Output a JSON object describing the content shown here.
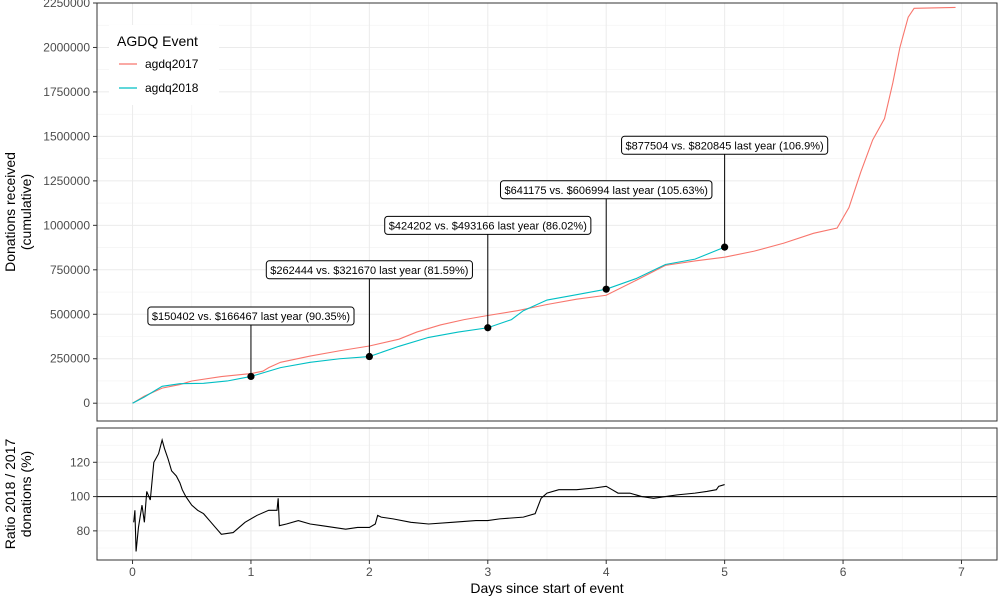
{
  "chart_data": [
    {
      "type": "line",
      "panel": "top",
      "ylabel_lines": [
        "Donations received",
        "(cumulative)"
      ],
      "xlim": [
        -0.3,
        7.3
      ],
      "ylim": [
        -100000,
        2250000
      ],
      "x_ticks": [
        0,
        1,
        2,
        3,
        4,
        5,
        6,
        7
      ],
      "y_ticks": [
        0,
        250000,
        500000,
        750000,
        1000000,
        1250000,
        1500000,
        1750000,
        2000000,
        2250000
      ],
      "grid": true,
      "legend": {
        "title": "AGDQ Event",
        "placement": "top-left",
        "entries": [
          {
            "label": "agdq2017",
            "color": "#F8766D"
          },
          {
            "label": "agdq2018",
            "color": "#00BFC4"
          }
        ]
      },
      "series": [
        {
          "name": "agdq2017",
          "color": "#F8766D",
          "points": [
            [
              0,
              0
            ],
            [
              0.1,
              40000
            ],
            [
              0.25,
              85000
            ],
            [
              0.4,
              105000
            ],
            [
              0.5,
              125000
            ],
            [
              0.75,
              150000
            ],
            [
              1.0,
              166467
            ],
            [
              1.1,
              180000
            ],
            [
              1.15,
              200000
            ],
            [
              1.25,
              230000
            ],
            [
              1.5,
              265000
            ],
            [
              1.75,
              295000
            ],
            [
              2.0,
              321670
            ],
            [
              2.25,
              360000
            ],
            [
              2.4,
              400000
            ],
            [
              2.6,
              440000
            ],
            [
              2.8,
              470000
            ],
            [
              3.0,
              493166
            ],
            [
              3.25,
              520000
            ],
            [
              3.5,
              555000
            ],
            [
              3.75,
              585000
            ],
            [
              4.0,
              606994
            ],
            [
              4.25,
              690000
            ],
            [
              4.5,
              775000
            ],
            [
              4.75,
              800000
            ],
            [
              5.0,
              820845
            ],
            [
              5.25,
              855000
            ],
            [
              5.5,
              900000
            ],
            [
              5.75,
              955000
            ],
            [
              5.95,
              985000
            ],
            [
              6.05,
              1100000
            ],
            [
              6.15,
              1300000
            ],
            [
              6.25,
              1480000
            ],
            [
              6.35,
              1600000
            ],
            [
              6.42,
              1800000
            ],
            [
              6.48,
              2000000
            ],
            [
              6.55,
              2170000
            ],
            [
              6.6,
              2220000
            ],
            [
              6.95,
              2225000
            ]
          ]
        },
        {
          "name": "agdq2018",
          "color": "#00BFC4",
          "points": [
            [
              0,
              0
            ],
            [
              0.1,
              35000
            ],
            [
              0.25,
              95000
            ],
            [
              0.4,
              110000
            ],
            [
              0.6,
              112000
            ],
            [
              0.8,
              125000
            ],
            [
              1.0,
              150402
            ],
            [
              1.25,
              200000
            ],
            [
              1.5,
              230000
            ],
            [
              1.75,
              250000
            ],
            [
              2.0,
              262444
            ],
            [
              2.25,
              320000
            ],
            [
              2.5,
              370000
            ],
            [
              2.75,
              400000
            ],
            [
              3.0,
              424202
            ],
            [
              3.2,
              470000
            ],
            [
              3.3,
              520000
            ],
            [
              3.5,
              580000
            ],
            [
              3.75,
              610000
            ],
            [
              4.0,
              641175
            ],
            [
              4.25,
              700000
            ],
            [
              4.5,
              780000
            ],
            [
              4.75,
              810000
            ],
            [
              5.0,
              877504
            ]
          ]
        }
      ],
      "annotations": [
        {
          "x": 1,
          "y": 150402,
          "label": "$150402 vs. $166467 last year (90.35%)",
          "label_y": 490000
        },
        {
          "x": 2,
          "y": 262444,
          "label": "$262444 vs. $321670 last year (81.59%)",
          "label_y": 750000
        },
        {
          "x": 3,
          "y": 424202,
          "label": "$424202 vs. $493166 last year (86.02%)",
          "label_y": 1000000
        },
        {
          "x": 4,
          "y": 641175,
          "label": "$641175 vs. $606994 last year (105.63%)",
          "label_y": 1200000
        },
        {
          "x": 5,
          "y": 877504,
          "label": "$877504 vs. $820845 last year (106.9%)",
          "label_y": 1450000
        }
      ]
    },
    {
      "type": "line",
      "panel": "bottom",
      "ylabel_lines": [
        "Ratio 2018 / 2017",
        "donations (%)"
      ],
      "xlabel": "Days since start of event",
      "xlim": [
        -0.3,
        7.3
      ],
      "ylim": [
        63,
        140
      ],
      "x_ticks": [
        0,
        1,
        2,
        3,
        4,
        5,
        6,
        7
      ],
      "y_ticks": [
        80,
        100,
        120
      ],
      "grid": true,
      "reference_line": 100,
      "series": [
        {
          "name": "",
          "color": "#000000",
          "points": [
            [
              0.01,
              85
            ],
            [
              0.02,
              92
            ],
            [
              0.03,
              68
            ],
            [
              0.05,
              82
            ],
            [
              0.08,
              95
            ],
            [
              0.1,
              85
            ],
            [
              0.12,
              103
            ],
            [
              0.15,
              98
            ],
            [
              0.18,
              120
            ],
            [
              0.22,
              125
            ],
            [
              0.25,
              133
            ],
            [
              0.27,
              128
            ],
            [
              0.3,
              122
            ],
            [
              0.33,
              115
            ],
            [
              0.37,
              112
            ],
            [
              0.4,
              108
            ],
            [
              0.42,
              104
            ],
            [
              0.45,
              100
            ],
            [
              0.5,
              95
            ],
            [
              0.55,
              92
            ],
            [
              0.6,
              90
            ],
            [
              0.65,
              86
            ],
            [
              0.7,
              82
            ],
            [
              0.75,
              78
            ],
            [
              0.85,
              79
            ],
            [
              0.95,
              85
            ],
            [
              1.05,
              89
            ],
            [
              1.15,
              92
            ],
            [
              1.22,
              92
            ],
            [
              1.23,
              99
            ],
            [
              1.24,
              83
            ],
            [
              1.3,
              84
            ],
            [
              1.4,
              86
            ],
            [
              1.5,
              84
            ],
            [
              1.6,
              83
            ],
            [
              1.7,
              82
            ],
            [
              1.8,
              81
            ],
            [
              1.9,
              82
            ],
            [
              2.0,
              82
            ],
            [
              2.05,
              84
            ],
            [
              2.07,
              89
            ],
            [
              2.1,
              88
            ],
            [
              2.2,
              87
            ],
            [
              2.35,
              85
            ],
            [
              2.5,
              84
            ],
            [
              2.7,
              85
            ],
            [
              2.9,
              86
            ],
            [
              3.0,
              86
            ],
            [
              3.1,
              87
            ],
            [
              3.3,
              88
            ],
            [
              3.4,
              90
            ],
            [
              3.45,
              99
            ],
            [
              3.5,
              102
            ],
            [
              3.6,
              104
            ],
            [
              3.75,
              104
            ],
            [
              3.9,
              105
            ],
            [
              4.0,
              106
            ],
            [
              4.05,
              104
            ],
            [
              4.1,
              102
            ],
            [
              4.2,
              102
            ],
            [
              4.3,
              100
            ],
            [
              4.4,
              99
            ],
            [
              4.5,
              100
            ],
            [
              4.6,
              101
            ],
            [
              4.75,
              102
            ],
            [
              4.85,
              103
            ],
            [
              4.93,
              104
            ],
            [
              4.95,
              106
            ],
            [
              5.0,
              107
            ]
          ]
        }
      ]
    }
  ]
}
